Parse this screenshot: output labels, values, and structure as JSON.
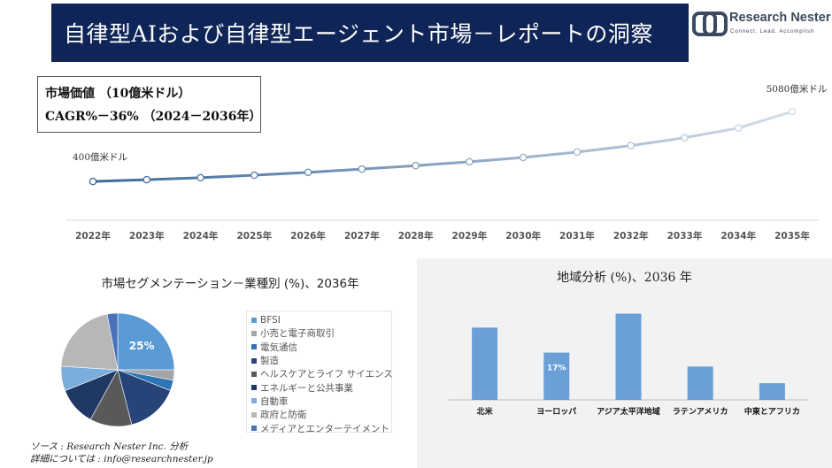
{
  "header": {
    "title": "自律型AIおよび自律型エージェント市場－レポートの洞察"
  },
  "logo": {
    "name": "Research Nester",
    "tagline": "Connect. Lead. Accomplish"
  },
  "market_value_box": {
    "line1": "市場価値 （10億米ドル）",
    "line2": "CAGR%－36% （2024－2036年）"
  },
  "segment_chart": {
    "title": "市場セグメンテーション－業種別 (%)、2036年"
  },
  "region_chart": {
    "title": "地域分析 (%)、2036 年"
  },
  "source": {
    "line1": "ソース : Research Nester Inc. 分析",
    "line2": "詳細については : info@researchnester.jp"
  },
  "colors": {
    "header_bg": "#0f2557",
    "line_start": "#3d6a99",
    "line_end": "#d3dde9",
    "bar": "#6a9fd8",
    "panel_bg": "#f2f2f2"
  },
  "chart_data": [
    {
      "type": "line",
      "x": [
        "2022年",
        "2023年",
        "2024年",
        "2025年",
        "2026年",
        "2027年",
        "2028年",
        "2029年",
        "2030年",
        "2031年",
        "2032年",
        "2033年",
        "2034年",
        "2035年"
      ],
      "values": [
        400,
        520,
        650,
        820,
        1010,
        1230,
        1460,
        1720,
        2010,
        2370,
        2800,
        3330,
        3980,
        5080
      ],
      "annotations": [
        {
          "index": 0,
          "text": "400億米ドル"
        },
        {
          "index": 13,
          "text": "5080億米ドル"
        }
      ],
      "ylim": [
        -2200,
        9000
      ]
    },
    {
      "type": "pie",
      "title": "市場セグメンテーション－業種別 (%)、2036年",
      "labels": [
        "BFSI",
        "小売と電子商取引",
        "電気通信",
        "製造",
        "ヘルスケアとライフ サイエンス",
        "エネルギーと公共事業",
        "自動車",
        "政府と防衛",
        "メディアとエンターテイメント"
      ],
      "values": [
        25,
        3,
        3,
        15,
        12,
        11,
        7,
        21,
        3
      ],
      "data_labels": [
        {
          "index": 0,
          "text": "25%"
        }
      ],
      "colors": [
        "#5b9bd5",
        "#a5a5a5",
        "#2e75b6",
        "#264478",
        "#595959",
        "#1f3864",
        "#7aacdc",
        "#b7b7b7",
        "#4a72b8"
      ]
    },
    {
      "type": "bar",
      "title": "地域分析 (%)、2036 年",
      "categories": [
        "北米",
        "ヨーロッパ",
        "アジア太平洋地域",
        "ラテンアメリカ",
        "中東とアフリカ"
      ],
      "values": [
        26,
        17,
        31,
        12,
        6
      ],
      "data_labels": [
        {
          "index": 1,
          "text": "17%"
        }
      ],
      "ylim": [
        0,
        35
      ]
    }
  ]
}
